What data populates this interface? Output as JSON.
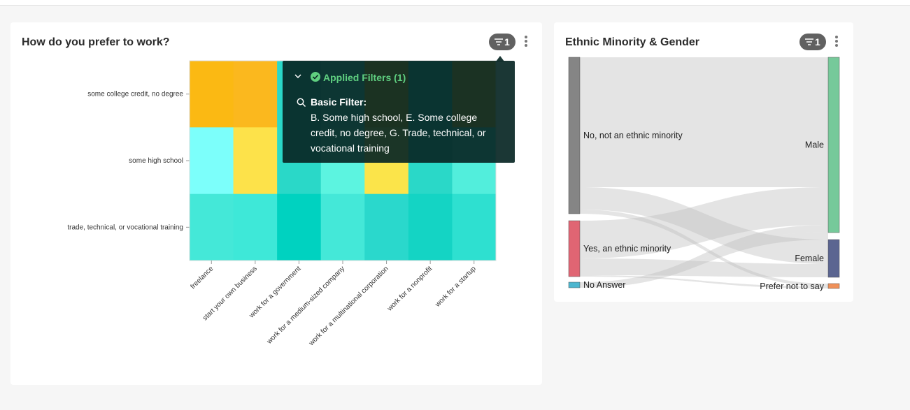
{
  "cards": [
    {
      "title": "How do you prefer to work?",
      "badge": "1",
      "heatmap": {
        "rows": [
          "some college credit, no degree",
          "some high school",
          "trade, technical, or vocational training"
        ],
        "columns": [
          "freelance",
          "start your own business",
          "work for a government",
          "work for a medium-sized company",
          "work for a multinational corporation",
          "work for a nonprofit",
          "work for a startup"
        ],
        "colors": [
          [
            "#fbb913",
            "#fbb81e",
            "#2ad8c8",
            "#52eedc",
            "#fbb913",
            "#2ad8c8",
            "#fbb81e"
          ],
          [
            "#7cfffb",
            "#fde24a",
            "#2ad8c8",
            "#5cf4e0",
            "#fbe44a",
            "#2ad8c8",
            "#52eedc"
          ],
          [
            "#44e8d8",
            "#3ee8d8",
            "#00d2c0",
            "#44e8d8",
            "#2ad8cc",
            "#14d4c4",
            "#2ee0d0"
          ]
        ]
      },
      "tooltip": {
        "heading": "Applied Filters (1)",
        "filter_label": "Basic Filter:",
        "filter_text": "B. Some high school, E. Some college credit, no degree, G. Trade, technical, or vocational training"
      }
    },
    {
      "title": "Ethnic Minority & Gender",
      "badge": "1",
      "sankey": {
        "left": [
          {
            "label": "No, not an ethnic minority",
            "color": "#858585"
          },
          {
            "label": "Yes, an ethnic minority",
            "color": "#e06573"
          },
          {
            "label": "No Answer",
            "color": "#4db6cf"
          }
        ],
        "right": [
          {
            "label": "Male",
            "color": "#76c99a"
          },
          {
            "label": "Female",
            "color": "#5b6591"
          },
          {
            "label": "Prefer not to say",
            "color": "#f0915a"
          }
        ]
      }
    }
  ]
}
